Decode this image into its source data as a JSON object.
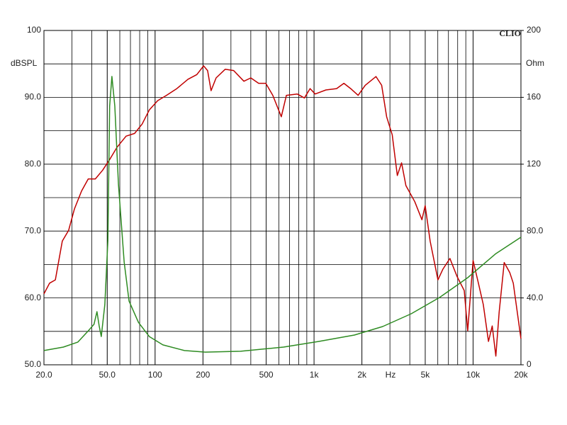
{
  "chart_data": {
    "type": "line",
    "xscale": "log",
    "grid": true,
    "brand": "CLIO",
    "xlabel": "Hz",
    "ylabel": "dBSPL",
    "y2label": "Ohm",
    "xlim": [
      20,
      20000
    ],
    "xticks": [
      {
        "value": 20,
        "label": "20.0"
      },
      {
        "value": 50,
        "label": "50.0"
      },
      100,
      200,
      500,
      {
        "value": 1000,
        "label": "1k"
      },
      {
        "value": 2000,
        "label": "2k"
      },
      {
        "value": 5000,
        "label": "5k"
      },
      {
        "value": 10000,
        "label": "10k"
      },
      {
        "value": 20000,
        "label": "20k"
      }
    ],
    "ylim": [
      50,
      100
    ],
    "yticks": [
      {
        "value": 50,
        "label": "50.0"
      },
      {
        "value": 60,
        "label": "60.0"
      },
      {
        "value": 70,
        "label": "70.0"
      },
      {
        "value": 80,
        "label": "80.0"
      },
      {
        "value": 90,
        "label": "90.0"
      },
      100
    ],
    "y2lim": [
      0,
      200
    ],
    "y2ticks": [
      0,
      {
        "value": 40,
        "label": "40.0"
      },
      {
        "value": 80,
        "label": "80.0"
      },
      120,
      160,
      200
    ],
    "series": [
      {
        "color": "#c00000",
        "axis": "y",
        "x": [
          20,
          21.7,
          23.6,
          26.1,
          28.6,
          31.1,
          34.5,
          38,
          42.1,
          46.8,
          51.8,
          57.5,
          65.7,
          74.3,
          82.9,
          91.9,
          103.9,
          118,
          137,
          161,
          183,
          202,
          214,
          225,
          242,
          276,
          312,
          362,
          400,
          448,
          497,
          550,
          622,
          670,
          784,
          869,
          944,
          1016,
          1186,
          1386,
          1540,
          1700,
          1893,
          2098,
          2452,
          2660,
          2860,
          3100,
          3340,
          3550,
          3780,
          4300,
          4770,
          5000,
          5370,
          6010,
          6460,
          7150,
          7930,
          8800,
          9250,
          10000,
          10800,
          11600,
          12500,
          13200,
          13900,
          14600,
          15700,
          17000,
          17900,
          20000
        ],
        "values": [
          60.6,
          62.2,
          62.7,
          68.5,
          70.1,
          73.3,
          76.0,
          77.8,
          77.8,
          79.1,
          80.7,
          82.5,
          84.2,
          84.6,
          86.0,
          88.1,
          89.5,
          90.3,
          91.3,
          92.7,
          93.4,
          94.7,
          94.0,
          91.0,
          92.9,
          94.2,
          94.0,
          92.4,
          92.9,
          92.1,
          92.1,
          90.3,
          87.1,
          90.3,
          90.5,
          89.9,
          91.3,
          90.5,
          91.1,
          91.3,
          92.1,
          91.3,
          90.3,
          91.8,
          93.1,
          91.8,
          87.1,
          84.4,
          78.3,
          80.2,
          76.8,
          74.4,
          71.7,
          73.8,
          68.5,
          62.7,
          64.3,
          65.9,
          63.2,
          61.1,
          55.1,
          65.6,
          62.2,
          59.0,
          53.5,
          55.8,
          51.3,
          57.9,
          65.3,
          63.8,
          62.2,
          53.9
        ]
      },
      {
        "color": "#2e8b22",
        "axis": "y2",
        "x": [
          20,
          26.5,
          32.7,
          38,
          41.3,
          43.1,
          44.5,
          45.9,
          48.3,
          50.5,
          51.8,
          53.5,
          55.8,
          58.8,
          63.9,
          68.6,
          78.6,
          91.9,
          112,
          153,
          207,
          345,
          643,
          1072,
          1793,
          2700,
          4080,
          6160,
          9250,
          13900,
          20000
        ],
        "values": [
          8.5,
          10.6,
          13.6,
          20.3,
          24.2,
          31.8,
          23.3,
          16.9,
          36.0,
          74.2,
          154.7,
          172.5,
          154.7,
          108.1,
          61.4,
          38.1,
          25.4,
          16.9,
          11.9,
          8.5,
          7.6,
          8.1,
          10.6,
          14.0,
          17.8,
          22.9,
          30.5,
          40.3,
          52.1,
          66.5,
          76.3
        ]
      }
    ]
  }
}
